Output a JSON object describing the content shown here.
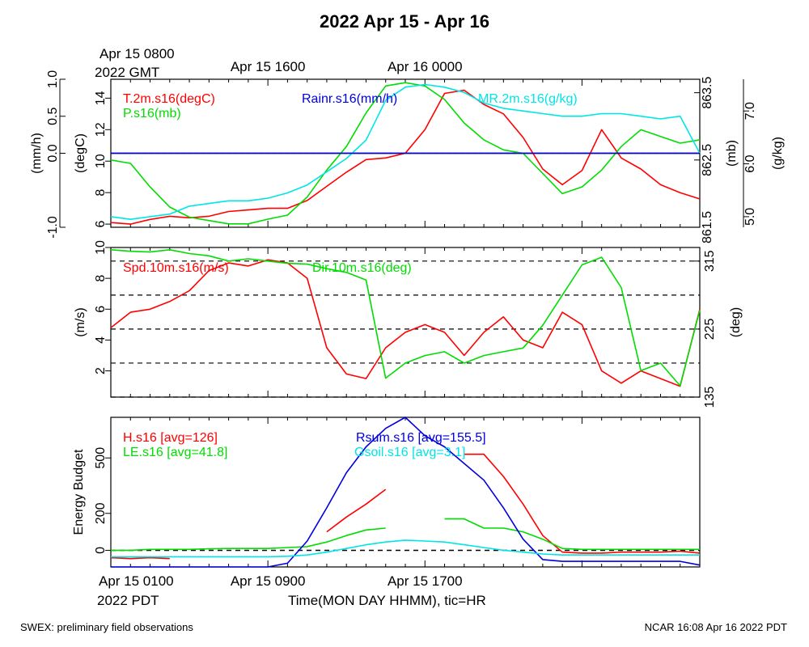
{
  "title": "2022 Apr 15 - Apr 16",
  "top_left": {
    "line1": "Apr 15 0800",
    "line2": "2022 GMT"
  },
  "bottom_left": {
    "line1": "Apr 15 0100",
    "line2": "2022 PDT"
  },
  "x_label": "Time(MON DAY HHMM), tic=HR",
  "footer_left": "SWEX: preliminary field observations",
  "footer_right": "NCAR 16:08 Apr 16 2022 PDT",
  "colors": {
    "red": "#ff0000",
    "green": "#00dd00",
    "blue": "#0000dd",
    "cyan": "#00e5e5",
    "black": "#000000"
  },
  "chart_data": [
    {
      "type": "line",
      "panel": "top",
      "x_unit": "hours since Apr 15 0100 PDT",
      "xlim": [
        0,
        30
      ],
      "top_tick_labels": [
        {
          "x": 8,
          "text": "Apr 15 1600"
        },
        {
          "x": 16,
          "text": "Apr 16 0000"
        }
      ],
      "y_axes": [
        {
          "label": "(mm/h)",
          "ticks": [
            "-1.0",
            "0.0",
            "0.5",
            "1.0"
          ],
          "tick_values": [
            -1.0,
            0.0,
            0.5,
            1.0
          ],
          "ylim": [
            -1.0,
            1.0
          ]
        },
        {
          "label": "(degC)",
          "ticks": [
            "6",
            "8",
            "10",
            "12",
            "14"
          ],
          "tick_values": [
            6,
            8,
            10,
            12,
            14
          ],
          "ylim": [
            5.8,
            15.2
          ]
        },
        {
          "label": "(mb)",
          "ticks": [
            "861.5",
            "862.5",
            "863.5"
          ],
          "tick_values": [
            861.5,
            862.5,
            863.5
          ],
          "ylim": [
            861.5,
            863.7
          ]
        },
        {
          "label": "(g/kg)",
          "ticks": [
            "5.0",
            "6.0",
            "7.0"
          ],
          "tick_values": [
            5.0,
            6.0,
            7.0
          ],
          "ylim": [
            4.8,
            7.6
          ]
        }
      ],
      "reference_line": 0.0,
      "series": [
        {
          "name": "T.2m.s16(degC)",
          "color": "#ff0000",
          "axis": 1,
          "x": [
            0,
            1,
            2,
            3,
            4,
            5,
            6,
            7,
            8,
            9,
            10,
            11,
            12,
            13,
            14,
            15,
            16,
            17,
            18,
            19,
            20,
            21,
            22,
            23,
            24,
            25,
            26,
            27,
            28,
            29,
            30
          ],
          "y": [
            6.1,
            6.0,
            6.3,
            6.5,
            6.4,
            6.5,
            6.8,
            6.9,
            7.0,
            7.0,
            7.5,
            8.4,
            9.3,
            10.1,
            10.2,
            10.5,
            12.0,
            14.3,
            14.5,
            13.6,
            13.0,
            11.5,
            9.5,
            8.5,
            9.4,
            12.0,
            10.2,
            9.5,
            8.5,
            8.0,
            7.6
          ]
        },
        {
          "name": "P.s16(mb)",
          "color": "#00dd00",
          "axis": 2,
          "x": [
            0,
            1,
            2,
            3,
            4,
            5,
            6,
            7,
            8,
            9,
            10,
            11,
            12,
            13,
            14,
            15,
            16,
            17,
            18,
            19,
            20,
            21,
            22,
            23,
            24,
            25,
            26,
            27,
            28,
            29,
            30
          ],
          "y": [
            862.5,
            862.45,
            862.1,
            861.8,
            861.65,
            861.6,
            861.55,
            861.55,
            861.62,
            861.68,
            861.95,
            862.35,
            862.7,
            863.2,
            863.6,
            863.65,
            863.6,
            863.4,
            863.05,
            862.8,
            862.65,
            862.6,
            862.3,
            862.0,
            862.1,
            862.35,
            862.7,
            862.95,
            862.85,
            862.75,
            862.8
          ]
        },
        {
          "name": "MR.2m.s16(g/kg)",
          "color": "#00e5e5",
          "axis": 3,
          "x": [
            0,
            1,
            2,
            3,
            4,
            5,
            6,
            7,
            8,
            9,
            10,
            11,
            12,
            13,
            14,
            15,
            16,
            17,
            18,
            19,
            20,
            21,
            22,
            23,
            24,
            25,
            26,
            27,
            28,
            29,
            30
          ],
          "y": [
            5.0,
            4.95,
            5.0,
            5.05,
            5.2,
            5.25,
            5.3,
            5.3,
            5.35,
            5.45,
            5.6,
            5.85,
            6.1,
            6.45,
            7.2,
            7.45,
            7.5,
            7.45,
            7.35,
            7.15,
            7.05,
            7.0,
            6.95,
            6.9,
            6.9,
            6.95,
            6.95,
            6.9,
            6.85,
            6.9,
            6.2
          ]
        },
        {
          "name": "Rainr.s16(mm/h)",
          "color": "#0000dd",
          "axis": 0,
          "x": [
            0,
            30
          ],
          "y": [
            0.0,
            0.0
          ]
        }
      ]
    },
    {
      "type": "line",
      "panel": "middle",
      "xlim": [
        0,
        30
      ],
      "y_axes": [
        {
          "label": "(m/s)",
          "ticks": [
            "2",
            "4",
            "6",
            "8",
            "10"
          ],
          "tick_values": [
            2,
            4,
            6,
            8,
            10
          ],
          "ylim": [
            0.3,
            10.0
          ]
        },
        {
          "label": "(deg)",
          "ticks": [
            "135",
            "225",
            "315"
          ],
          "tick_values": [
            135,
            225,
            315
          ],
          "ylim": [
            135,
            333
          ]
        }
      ],
      "dashed_lines_deg": [
        135,
        180,
        225,
        270,
        315
      ],
      "series": [
        {
          "name": "Spd.10m.s16(m/s)",
          "color": "#ff0000",
          "axis": 0,
          "x": [
            0,
            1,
            2,
            3,
            4,
            5,
            6,
            7,
            8,
            9,
            10,
            11,
            12,
            13,
            14,
            15,
            16,
            17,
            18,
            19,
            20,
            21,
            22,
            23,
            24,
            25,
            26,
            27,
            28,
            29,
            30
          ],
          "y": [
            4.8,
            5.8,
            6.0,
            6.5,
            7.2,
            8.5,
            9.0,
            8.8,
            9.2,
            9.0,
            8.0,
            3.5,
            1.8,
            1.5,
            3.5,
            4.5,
            5.0,
            4.5,
            3.0,
            4.5,
            5.5,
            4.0,
            3.5,
            5.8,
            5.0,
            2.0,
            1.2,
            2.0,
            1.5,
            1.0,
            6.0
          ]
        },
        {
          "name": "Dir.10m.s16(deg)",
          "color": "#00dd00",
          "axis": 1,
          "x": [
            0,
            1,
            2,
            3,
            4,
            5,
            6,
            7,
            8,
            9,
            10,
            11,
            12,
            13,
            14,
            15,
            16,
            17,
            18,
            19,
            20,
            21,
            22,
            23,
            24,
            25,
            26,
            27,
            28,
            29,
            30
          ],
          "y": [
            330,
            328,
            327,
            330,
            325,
            322,
            315,
            318,
            315,
            312,
            311,
            305,
            300,
            290,
            160,
            180,
            190,
            195,
            180,
            190,
            195,
            200,
            230,
            270,
            310,
            320,
            280,
            170,
            180,
            150,
            250
          ]
        }
      ]
    },
    {
      "type": "line",
      "panel": "bottom",
      "xlim": [
        0,
        30
      ],
      "y_axes": [
        {
          "label": "Energy Budget",
          "ticks": [
            "0",
            "200",
            "500"
          ],
          "tick_values": [
            0,
            200,
            500
          ],
          "ylim": [
            -90,
            720
          ]
        }
      ],
      "reference_line": 0,
      "series": [
        {
          "name": "H.s16 [avg=126]",
          "color": "#ff0000",
          "x": [
            0,
            1,
            2,
            3,
            4,
            5,
            6,
            7,
            8,
            9,
            10,
            11,
            12,
            13,
            14,
            15,
            16,
            17,
            18,
            19,
            20,
            21,
            22,
            23,
            24,
            25,
            26,
            27,
            28,
            29,
            30
          ],
          "y": [
            -40,
            -45,
            -40,
            -45,
            null,
            null,
            null,
            null,
            null,
            null,
            null,
            100,
            180,
            250,
            330,
            null,
            null,
            null,
            520,
            520,
            400,
            250,
            80,
            -10,
            -15,
            -15,
            -10,
            -10,
            -10,
            -5,
            -15
          ]
        },
        {
          "name": "LE.s16 [avg=41.8]",
          "color": "#00dd00",
          "x": [
            0,
            1,
            2,
            3,
            4,
            5,
            6,
            7,
            8,
            9,
            10,
            11,
            12,
            13,
            14,
            15,
            16,
            17,
            18,
            19,
            20,
            21,
            22,
            23,
            24,
            25,
            26,
            27,
            28,
            29,
            30
          ],
          "y": [
            0,
            0,
            5,
            5,
            5,
            8,
            10,
            10,
            10,
            15,
            20,
            45,
            80,
            110,
            120,
            null,
            null,
            170,
            170,
            120,
            120,
            100,
            60,
            10,
            5,
            5,
            5,
            5,
            5,
            5,
            5
          ]
        },
        {
          "name": "Rsum.s16 [avg=155.5]",
          "color": "#0000dd",
          "x": [
            0,
            1,
            2,
            3,
            4,
            5,
            6,
            7,
            8,
            9,
            10,
            11,
            12,
            13,
            14,
            15,
            16,
            17,
            18,
            19,
            20,
            21,
            22,
            23,
            24,
            25,
            26,
            27,
            28,
            29,
            30
          ],
          "y": [
            -90,
            -90,
            -90,
            -90,
            -90,
            -90,
            -90,
            -90,
            -90,
            -70,
            50,
            230,
            420,
            560,
            660,
            720,
            620,
            560,
            470,
            380,
            230,
            60,
            -50,
            -60,
            -60,
            -60,
            -60,
            -60,
            -60,
            -60,
            -80
          ]
        },
        {
          "name": "Gsoil.s16 [avg=3.1]",
          "color": "#00e5e5",
          "x": [
            0,
            1,
            2,
            3,
            4,
            5,
            6,
            7,
            8,
            9,
            10,
            11,
            12,
            13,
            14,
            15,
            16,
            17,
            18,
            19,
            20,
            21,
            22,
            23,
            24,
            25,
            26,
            27,
            28,
            29,
            30
          ],
          "y": [
            -35,
            -35,
            -35,
            -35,
            -35,
            -35,
            -35,
            -35,
            -35,
            -32,
            -25,
            -10,
            10,
            30,
            45,
            55,
            50,
            45,
            30,
            15,
            0,
            -10,
            -20,
            -25,
            -25,
            -25,
            -25,
            -25,
            -25,
            -25,
            -25
          ]
        }
      ]
    }
  ]
}
